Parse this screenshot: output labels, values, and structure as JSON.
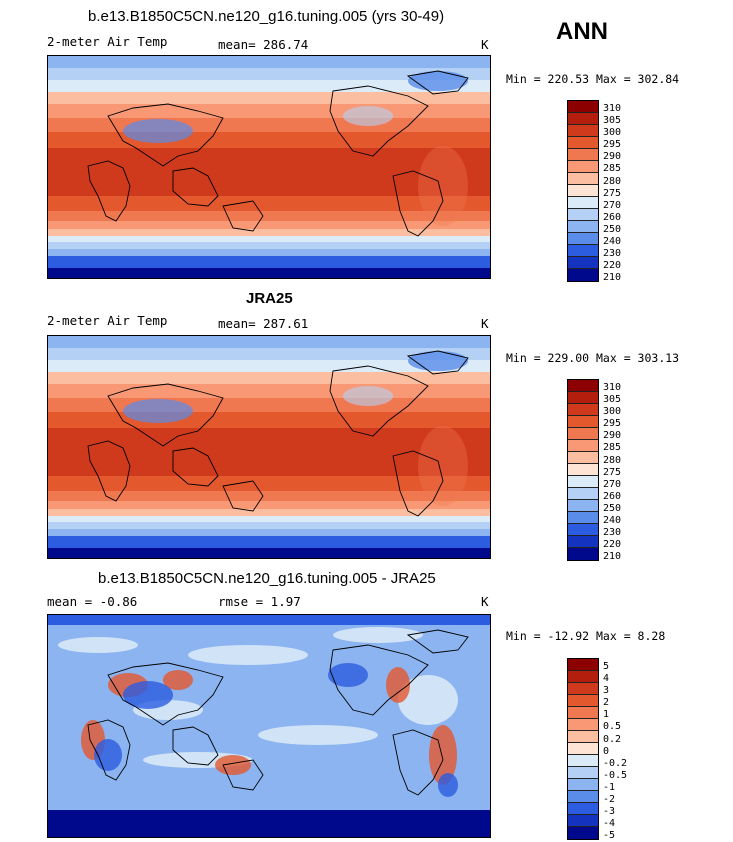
{
  "season": "ANN",
  "panels": [
    {
      "title": "b.e13.B1850C5CN.ne120_g16.tuning.005 (yrs 30-49)",
      "variable": "2-meter Air Temp",
      "stat": "mean=  286.74",
      "units": "K",
      "minmax": "Min = 220.53 Max = 302.84",
      "levels": [
        "310",
        "305",
        "300",
        "295",
        "290",
        "285",
        "280",
        "275",
        "270",
        "260",
        "250",
        "240",
        "230",
        "220",
        "210"
      ]
    },
    {
      "title": "JRA25",
      "variable": "2-meter Air Temp",
      "stat": "mean=  287.61",
      "units": "K",
      "minmax": "Min = 229.00 Max = 303.13",
      "levels": [
        "310",
        "305",
        "300",
        "295",
        "290",
        "285",
        "280",
        "275",
        "270",
        "260",
        "250",
        "240",
        "230",
        "220",
        "210"
      ]
    },
    {
      "title": "b.e13.B1850C5CN.ne120_g16.tuning.005 - JRA25",
      "variable": "mean =   -0.86",
      "stat": "rmse =    1.97",
      "units": "K",
      "minmax": "Min = -12.92 Max =   8.28",
      "levels": [
        "5",
        "4",
        "3",
        "2",
        "1",
        "0.5",
        "0.2",
        "0",
        "-0.2",
        "-0.5",
        "-1",
        "-2",
        "-3",
        "-4",
        "-5"
      ]
    }
  ],
  "colors": {
    "abs_scale": [
      "#8c0000",
      "#b41e0c",
      "#d03a1c",
      "#e4582e",
      "#f07850",
      "#f89874",
      "#fbbea0",
      "#fde4d4",
      "#dcebf8",
      "#b4d0f4",
      "#8cb4f0",
      "#5a8cea",
      "#2c5ce0",
      "#1434c0",
      "#00088c"
    ],
    "diff_scale": [
      "#8c0000",
      "#b41e0c",
      "#d03a1c",
      "#e4582e",
      "#f07850",
      "#f89874",
      "#fbbea0",
      "#fde4d4",
      "#dcebf8",
      "#b4d0f4",
      "#8cb4f0",
      "#5a8cea",
      "#2c5ce0",
      "#1434c0",
      "#00088c"
    ]
  }
}
